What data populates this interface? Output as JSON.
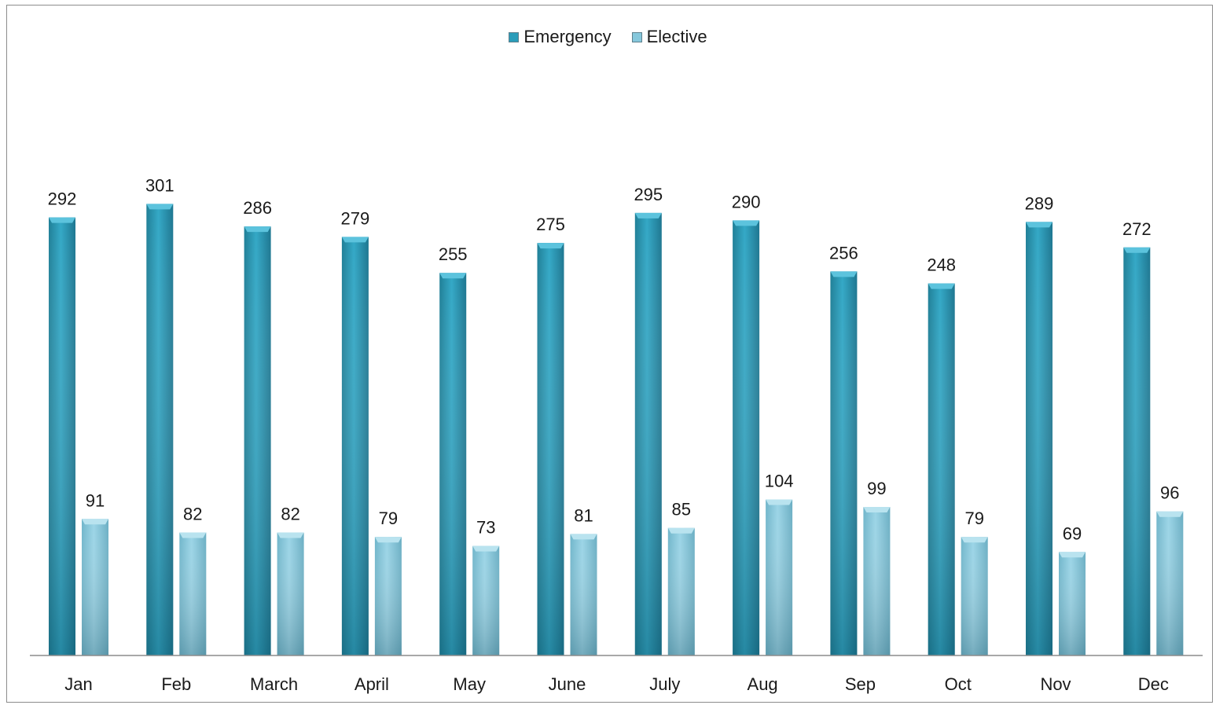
{
  "chart_data": {
    "type": "bar",
    "categories": [
      "Jan",
      "Feb",
      "March",
      "April",
      "May",
      "June",
      "July",
      "Aug",
      "Sep",
      "Oct",
      "Nov",
      "Dec"
    ],
    "series": [
      {
        "name": "Emergency",
        "values": [
          292,
          301,
          286,
          279,
          255,
          275,
          295,
          290,
          256,
          248,
          289,
          272
        ],
        "color": "#2a9dba"
      },
      {
        "name": "Elective",
        "values": [
          91,
          82,
          82,
          79,
          73,
          81,
          85,
          104,
          99,
          79,
          69,
          96
        ],
        "color": "#86c8dc"
      }
    ],
    "ylim": [
      0,
      395
    ],
    "legend_position": "top-center",
    "grid": false,
    "data_labels": true
  }
}
